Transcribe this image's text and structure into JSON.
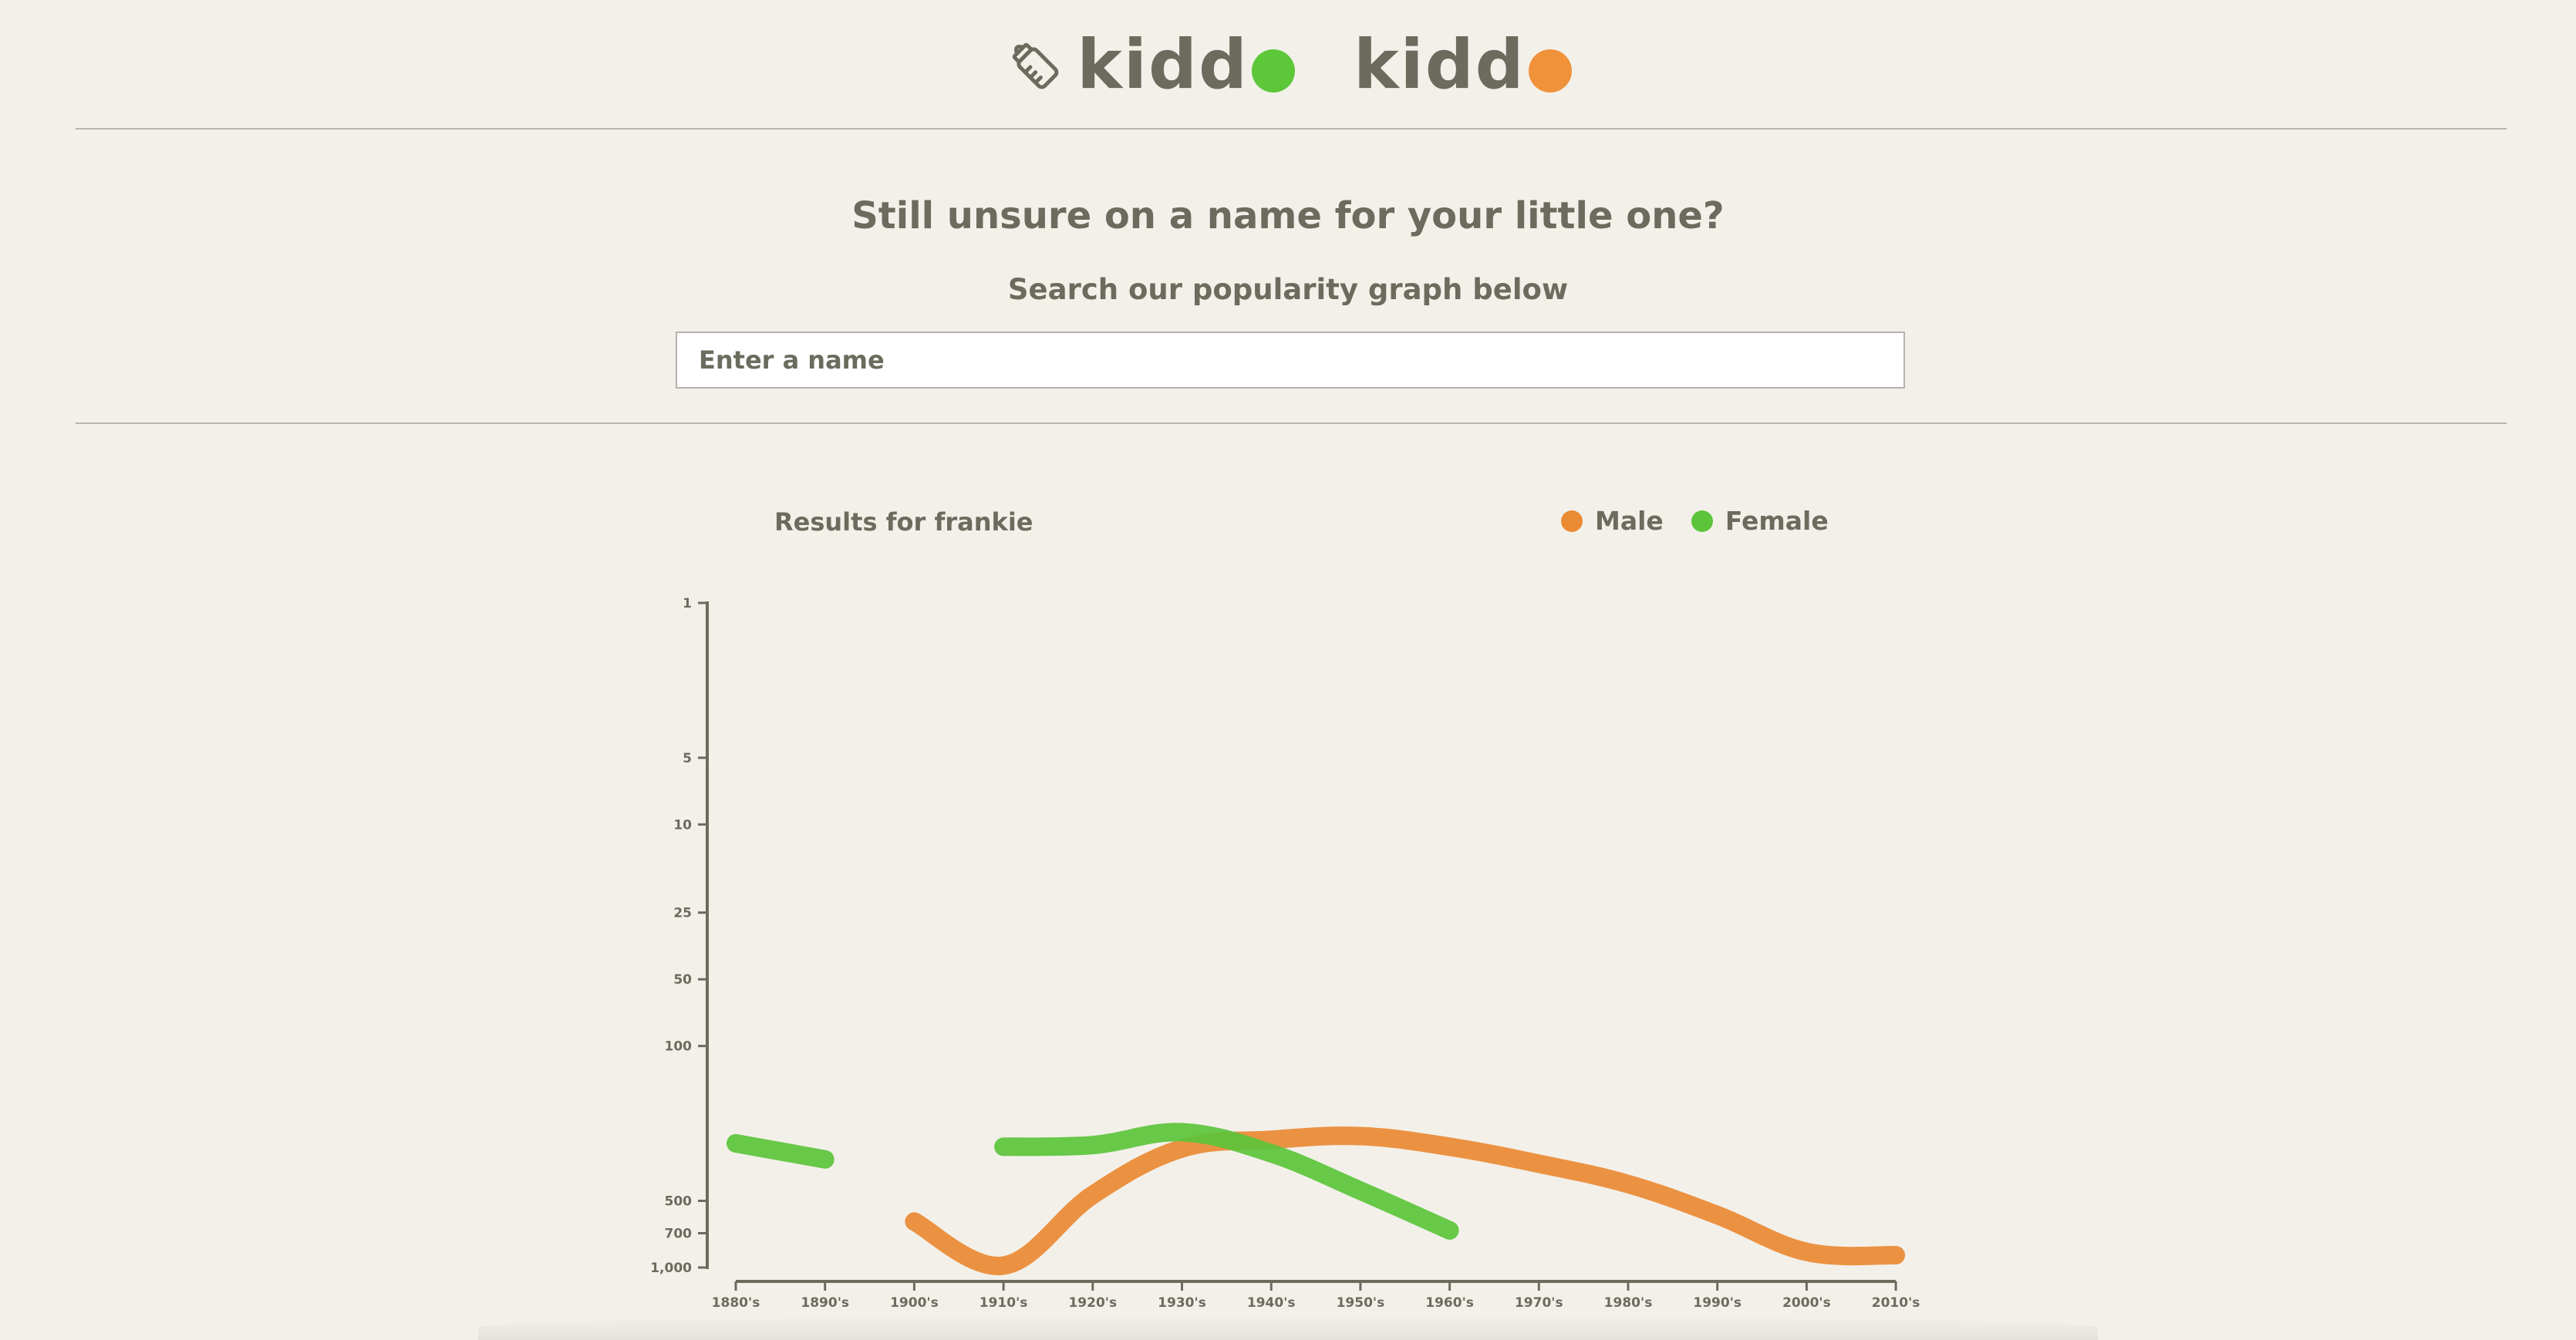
{
  "logo": {
    "word1": "kidd",
    "word2": "kidd",
    "dot1_color": "#5dc73a",
    "dot2_color": "#f0923a",
    "icon": "baby-bottle-icon"
  },
  "headline": "Still unsure on a name for your little one?",
  "subheadline": "Search our popularity graph below",
  "search": {
    "placeholder": "Enter a name",
    "value": ""
  },
  "results_label": "Results for frankie",
  "legend": [
    {
      "label": "Male",
      "color": "#ea8a33"
    },
    {
      "label": "Female",
      "color": "#5cc43a"
    }
  ],
  "chart_data": {
    "type": "line",
    "title": "",
    "xlabel": "",
    "ylabel": "",
    "categories": [
      "1880's",
      "1890's",
      "1900's",
      "1910's",
      "1920's",
      "1930's",
      "1940's",
      "1950's",
      "1960's",
      "1970's",
      "1980's",
      "1990's",
      "2000's",
      "2010's"
    ],
    "y_scale": "log",
    "y_reversed": true,
    "ylim": [
      1,
      1000
    ],
    "yticks": [
      1,
      5,
      10,
      25,
      50,
      100,
      500,
      700,
      1000
    ],
    "ytick_labels": [
      "1",
      "5",
      "10",
      "25",
      "50",
      "100",
      "500",
      "700",
      "1,000"
    ],
    "grid": false,
    "legend_position": "top-right",
    "series": [
      {
        "name": "Male",
        "color": "#ea8a33",
        "values": [
          null,
          null,
          620,
          980,
          470,
          290,
          265,
          255,
          285,
          340,
          420,
          580,
          850,
          880
        ]
      },
      {
        "name": "Female",
        "color": "#5cc43a",
        "values": [
          275,
          325,
          null,
          285,
          280,
          245,
          305,
          450,
          680,
          null,
          null,
          null,
          null,
          null
        ]
      }
    ]
  }
}
